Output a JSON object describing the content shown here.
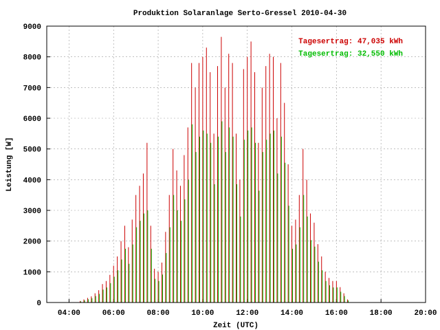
{
  "chart_data": {
    "type": "impulse",
    "title": "Produktion Solaranlage Serto-Gressel 2010-04-30",
    "x_label": "Zeit (UTC)",
    "y_label": "Leistung [W]",
    "x": [
      270,
      280,
      290,
      300,
      310,
      320,
      330,
      340,
      350,
      360,
      370,
      380,
      390,
      400,
      410,
      420,
      430,
      440,
      450,
      460,
      470,
      480,
      490,
      500,
      510,
      520,
      530,
      540,
      550,
      560,
      570,
      580,
      590,
      600,
      610,
      620,
      630,
      640,
      650,
      660,
      670,
      680,
      690,
      700,
      710,
      720,
      730,
      740,
      750,
      760,
      770,
      780,
      790,
      800,
      810,
      820,
      830,
      840,
      850,
      860,
      870,
      880,
      890,
      900,
      910,
      920,
      930,
      940,
      950,
      960,
      970,
      980,
      990
    ],
    "series": [
      {
        "name": "Tagesertrag: 47,035 kWh",
        "color": "#cc0000",
        "values": [
          50,
          100,
          150,
          200,
          300,
          400,
          600,
          700,
          900,
          1200,
          1500,
          2000,
          2500,
          1800,
          2700,
          3500,
          3800,
          4200,
          5200,
          2500,
          1100,
          1000,
          1300,
          2300,
          3500,
          5000,
          4300,
          3800,
          4800,
          5700,
          7800,
          7000,
          7800,
          8000,
          8300,
          7500,
          5500,
          7700,
          8650,
          7000,
          8100,
          7800,
          5500,
          4000,
          7600,
          8000,
          8500,
          7500,
          5200,
          7000,
          7700,
          8100,
          8000,
          6000,
          7800,
          6500,
          4500,
          2500,
          2700,
          3500,
          5000,
          4000,
          2900,
          2600,
          1900,
          1500,
          1000,
          800,
          700,
          700,
          500,
          300,
          100
        ]
      },
      {
        "name": "Tagesertrag: 32,550 kWh",
        "color": "#00bb00",
        "values": [
          35,
          70,
          105,
          140,
          210,
          280,
          420,
          490,
          630,
          840,
          1050,
          1400,
          1750,
          1260,
          1890,
          2450,
          2660,
          2900,
          3000,
          1750,
          770,
          700,
          910,
          1610,
          2450,
          3500,
          3000,
          2660,
          3360,
          4000,
          5800,
          4900,
          5400,
          5600,
          5500,
          5200,
          3850,
          5400,
          5900,
          4900,
          5700,
          5400,
          3850,
          2800,
          5300,
          5600,
          5700,
          5200,
          3640,
          4900,
          5300,
          5500,
          5600,
          4200,
          5400,
          4550,
          3150,
          1750,
          1890,
          2450,
          3500,
          2800,
          2030,
          1820,
          1330,
          1050,
          700,
          560,
          490,
          490,
          350,
          210,
          70
        ]
      }
    ],
    "xlim": [
      180,
      1200
    ],
    "xticks": [
      {
        "value": 240,
        "label": "04:00"
      },
      {
        "value": 360,
        "label": "06:00"
      },
      {
        "value": 480,
        "label": "08:00"
      },
      {
        "value": 600,
        "label": "10:00"
      },
      {
        "value": 720,
        "label": "12:00"
      },
      {
        "value": 840,
        "label": "14:00"
      },
      {
        "value": 960,
        "label": "16:00"
      },
      {
        "value": 1080,
        "label": "18:00"
      },
      {
        "value": 1200,
        "label": "20:00"
      }
    ],
    "ylim": [
      0,
      9000
    ],
    "yticks": [
      0,
      1000,
      2000,
      3000,
      4000,
      5000,
      6000,
      7000,
      8000,
      9000
    ],
    "grid": true,
    "legend": "top-right"
  }
}
